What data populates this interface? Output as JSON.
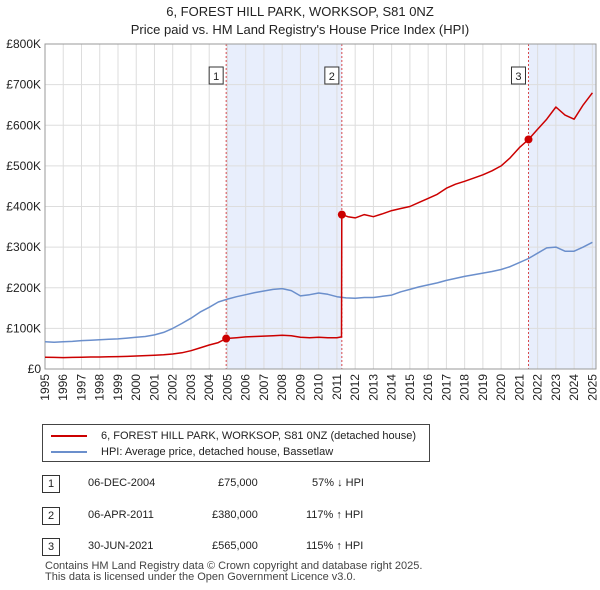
{
  "title_line1": "6, FOREST HILL PARK, WORKSOP, S81 0NZ",
  "title_line2": "Price paid vs. HM Land Registry's House Price Index (HPI)",
  "chart_data": {
    "type": "line",
    "xlim": [
      1995,
      2025.2
    ],
    "ylim": [
      0,
      800000
    ],
    "y_ticks": [
      {
        "value": 0,
        "label": "£0"
      },
      {
        "value": 100000,
        "label": "£100K"
      },
      {
        "value": 200000,
        "label": "£200K"
      },
      {
        "value": 300000,
        "label": "£300K"
      },
      {
        "value": 400000,
        "label": "£400K"
      },
      {
        "value": 500000,
        "label": "£500K"
      },
      {
        "value": 600000,
        "label": "£600K"
      },
      {
        "value": 700000,
        "label": "£700K"
      },
      {
        "value": 800000,
        "label": "£800K"
      }
    ],
    "x_ticks": [
      "1995",
      "1996",
      "1997",
      "1998",
      "1999",
      "2000",
      "2001",
      "2002",
      "2003",
      "2004",
      "2005",
      "2006",
      "2007",
      "2008",
      "2009",
      "2010",
      "2011",
      "2012",
      "2013",
      "2014",
      "2015",
      "2016",
      "2017",
      "2018",
      "2019",
      "2020",
      "2021",
      "2022",
      "2023",
      "2024",
      "2025"
    ],
    "series": [
      {
        "name": "6, FOREST HILL PARK, WORKSOP, S81 0NZ (detached house)",
        "color": "#cc0000",
        "points": [
          [
            1995.0,
            29000
          ],
          [
            1995.5,
            28500
          ],
          [
            1996.0,
            28000
          ],
          [
            1996.5,
            28500
          ],
          [
            1997.0,
            29000
          ],
          [
            1997.5,
            29500
          ],
          [
            1998.0,
            29500
          ],
          [
            1998.5,
            30000
          ],
          [
            1999.0,
            30500
          ],
          [
            1999.5,
            31000
          ],
          [
            2000.0,
            32000
          ],
          [
            2000.5,
            33000
          ],
          [
            2001.0,
            34000
          ],
          [
            2001.5,
            35000
          ],
          [
            2002.0,
            37000
          ],
          [
            2002.5,
            40000
          ],
          [
            2003.0,
            45000
          ],
          [
            2003.5,
            52000
          ],
          [
            2004.0,
            59000
          ],
          [
            2004.5,
            65000
          ],
          [
            2004.93,
            75000
          ],
          [
            2005.5,
            77000
          ],
          [
            2006.0,
            79000
          ],
          [
            2006.5,
            80000
          ],
          [
            2007.0,
            81000
          ],
          [
            2007.5,
            82000
          ],
          [
            2008.0,
            83000
          ],
          [
            2008.5,
            82000
          ],
          [
            2009.0,
            78000
          ],
          [
            2009.5,
            77000
          ],
          [
            2010.0,
            78000
          ],
          [
            2010.5,
            77000
          ],
          [
            2011.0,
            77000
          ],
          [
            2011.25,
            79000
          ],
          [
            2011.27,
            380000
          ],
          [
            2011.6,
            375000
          ],
          [
            2012.0,
            372000
          ],
          [
            2012.5,
            380000
          ],
          [
            2013.0,
            375000
          ],
          [
            2013.5,
            382000
          ],
          [
            2014.0,
            390000
          ],
          [
            2014.5,
            395000
          ],
          [
            2015.0,
            400000
          ],
          [
            2015.5,
            410000
          ],
          [
            2016.0,
            420000
          ],
          [
            2016.5,
            430000
          ],
          [
            2017.0,
            445000
          ],
          [
            2017.5,
            455000
          ],
          [
            2018.0,
            462000
          ],
          [
            2018.5,
            470000
          ],
          [
            2019.0,
            478000
          ],
          [
            2019.5,
            488000
          ],
          [
            2020.0,
            500000
          ],
          [
            2020.5,
            520000
          ],
          [
            2021.0,
            545000
          ],
          [
            2021.5,
            565000
          ],
          [
            2022.0,
            590000
          ],
          [
            2022.5,
            615000
          ],
          [
            2023.0,
            645000
          ],
          [
            2023.5,
            625000
          ],
          [
            2024.0,
            615000
          ],
          [
            2024.5,
            650000
          ],
          [
            2025.0,
            680000
          ]
        ]
      },
      {
        "name": "HPI: Average price, detached house, Bassetlaw",
        "color": "#6b8fcc",
        "points": [
          [
            1995.0,
            67000
          ],
          [
            1995.5,
            66000
          ],
          [
            1996.0,
            67000
          ],
          [
            1996.5,
            68000
          ],
          [
            1997.0,
            70000
          ],
          [
            1997.5,
            71000
          ],
          [
            1998.0,
            72000
          ],
          [
            1998.5,
            73000
          ],
          [
            1999.0,
            74000
          ],
          [
            1999.5,
            76000
          ],
          [
            2000.0,
            78000
          ],
          [
            2000.5,
            80000
          ],
          [
            2001.0,
            84000
          ],
          [
            2001.5,
            90000
          ],
          [
            2002.0,
            100000
          ],
          [
            2002.5,
            112000
          ],
          [
            2003.0,
            125000
          ],
          [
            2003.5,
            140000
          ],
          [
            2004.0,
            152000
          ],
          [
            2004.5,
            165000
          ],
          [
            2005.0,
            172000
          ],
          [
            2005.5,
            178000
          ],
          [
            2006.0,
            183000
          ],
          [
            2006.5,
            188000
          ],
          [
            2007.0,
            192000
          ],
          [
            2007.5,
            196000
          ],
          [
            2008.0,
            198000
          ],
          [
            2008.5,
            193000
          ],
          [
            2009.0,
            180000
          ],
          [
            2009.5,
            183000
          ],
          [
            2010.0,
            187000
          ],
          [
            2010.5,
            184000
          ],
          [
            2011.0,
            178000
          ],
          [
            2011.5,
            175000
          ],
          [
            2012.0,
            174000
          ],
          [
            2012.5,
            176000
          ],
          [
            2013.0,
            176000
          ],
          [
            2013.5,
            179000
          ],
          [
            2014.0,
            182000
          ],
          [
            2014.5,
            190000
          ],
          [
            2015.0,
            196000
          ],
          [
            2015.5,
            202000
          ],
          [
            2016.0,
            207000
          ],
          [
            2016.5,
            212000
          ],
          [
            2017.0,
            218000
          ],
          [
            2017.5,
            223000
          ],
          [
            2018.0,
            228000
          ],
          [
            2018.5,
            232000
          ],
          [
            2019.0,
            236000
          ],
          [
            2019.5,
            240000
          ],
          [
            2020.0,
            245000
          ],
          [
            2020.5,
            252000
          ],
          [
            2021.0,
            262000
          ],
          [
            2021.5,
            272000
          ],
          [
            2022.0,
            285000
          ],
          [
            2022.5,
            298000
          ],
          [
            2023.0,
            300000
          ],
          [
            2023.5,
            290000
          ],
          [
            2024.0,
            290000
          ],
          [
            2024.5,
            300000
          ],
          [
            2025.0,
            312000
          ]
        ]
      }
    ],
    "shaded_ranges": [
      [
        2004.93,
        2011.27
      ],
      [
        2021.5,
        2025.2
      ]
    ],
    "sales": [
      {
        "id": "1",
        "x": 2004.93,
        "price": 75000,
        "date": "06-DEC-2004",
        "price_label": "£75,000",
        "hpi": "57% ↓ HPI"
      },
      {
        "id": "2",
        "x": 2011.27,
        "price": 380000,
        "date": "06-APR-2011",
        "price_label": "£380,000",
        "hpi": "117% ↑ HPI"
      },
      {
        "id": "3",
        "x": 2021.5,
        "price": 565000,
        "date": "30-JUN-2021",
        "price_label": "£565,000",
        "hpi": "115% ↑ HPI"
      }
    ]
  },
  "legend": {
    "property_label": "6, FOREST HILL PARK, WORKSOP, S81 0NZ (detached house)",
    "hpi_label": "HPI: Average price, detached house, Bassetlaw"
  },
  "colors": {
    "property": "#cc0000",
    "hpi": "#6b8fcc",
    "shade": "#e8eefc",
    "grid": "#dddddd"
  },
  "footer_line1": "Contains HM Land Registry data © Crown copyright and database right 2025.",
  "footer_line2": "This data is licensed under the Open Government Licence v3.0."
}
